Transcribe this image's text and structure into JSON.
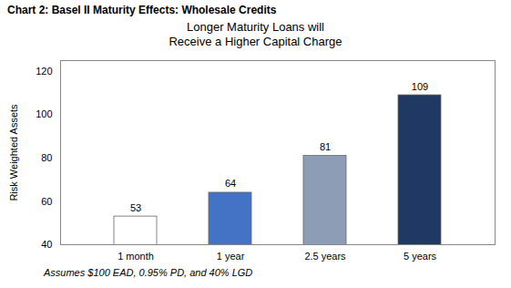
{
  "chart_data": {
    "type": "bar",
    "title": "Chart 2: Basel II Maturity Effects: Wholesale Credits",
    "subtitle": "Longer Maturity Loans will\nReceive a Higher Capital Charge",
    "caption": "Assumes $100 EAD, 0.95% PD, and 40% LGD",
    "categories": [
      "1 month",
      "1 year",
      "2.5 years",
      "5 years"
    ],
    "values": [
      53,
      64,
      81,
      109
    ],
    "colors": [
      "#ffffff",
      "#4472c4",
      "#8c9db5",
      "#1f3864"
    ],
    "ylabel": "Risk Weighted Assets",
    "ylim": [
      40,
      125
    ],
    "yticks": [
      40,
      60,
      80,
      100,
      120
    ],
    "grid": false,
    "data_labels": true
  }
}
